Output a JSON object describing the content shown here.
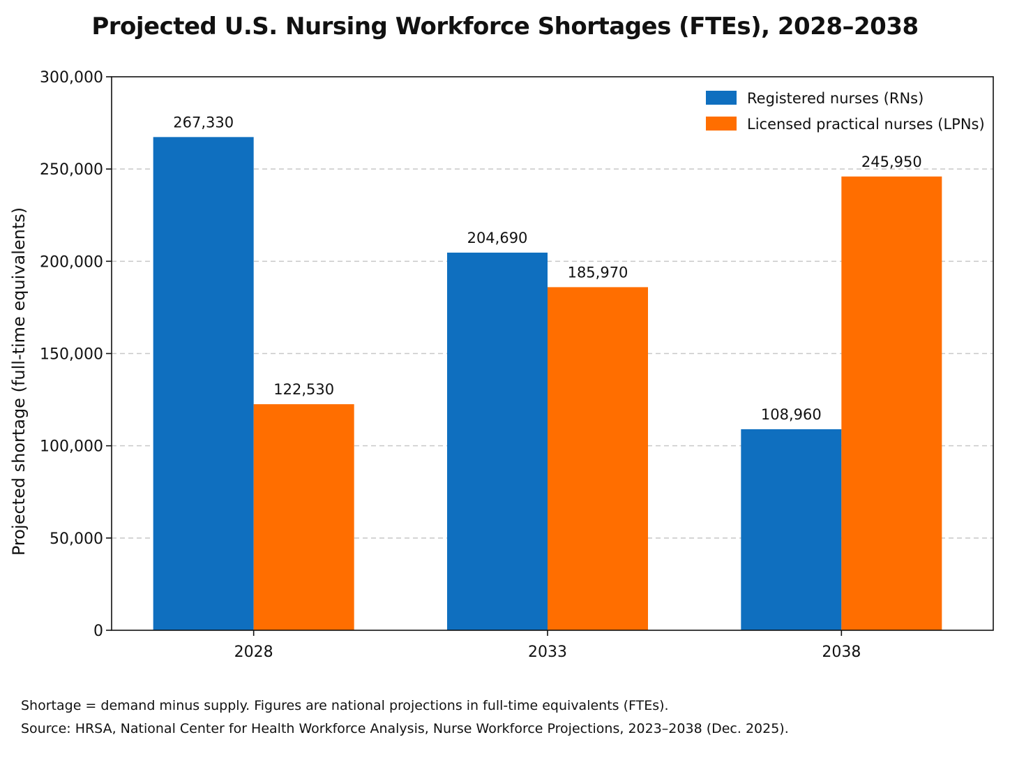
{
  "chart_data": {
    "type": "bar",
    "title": "Projected U.S. Nursing Workforce Shortages (FTEs), 2028–2038",
    "xlabel": "",
    "ylabel": "Projected shortage (full-time equivalents)",
    "categories": [
      "2028",
      "2033",
      "2038"
    ],
    "series": [
      {
        "name": "Registered nurses (RNs)",
        "color": "#0f6fbf",
        "values": [
          267330,
          204690,
          108960
        ],
        "labels": [
          "267,330",
          "204,690",
          "108,960"
        ]
      },
      {
        "name": "Licensed practical nurses (LPNs)",
        "color": "#ff6e00",
        "values": [
          122530,
          185970,
          245950
        ],
        "labels": [
          "122,530",
          "185,970",
          "245,950"
        ]
      }
    ],
    "ylim": [
      0,
      300000
    ],
    "yticks": [
      0,
      50000,
      100000,
      150000,
      200000,
      250000,
      300000
    ],
    "ytick_labels": [
      "0",
      "50,000",
      "100,000",
      "150,000",
      "200,000",
      "250,000",
      "300,000"
    ],
    "grid": true,
    "legend_position": "top-right"
  },
  "footnotes": {
    "line1": "Shortage = demand minus supply. Figures are national projections in full-time equivalents (FTEs).",
    "line2": "Source: HRSA, National Center for Health Workforce Analysis, Nurse Workforce Projections, 2023–2038 (Dec. 2025)."
  }
}
